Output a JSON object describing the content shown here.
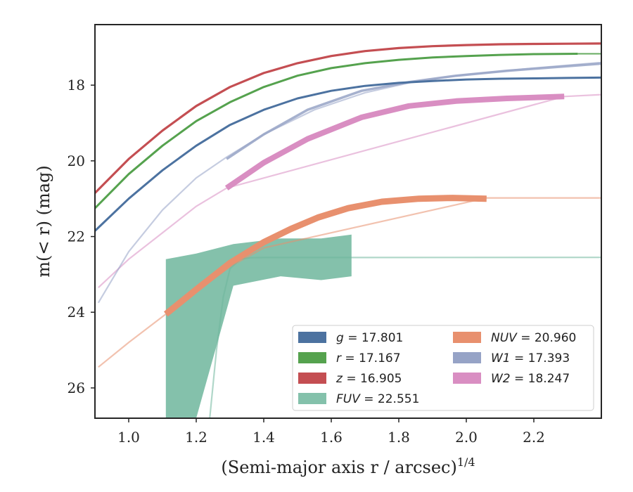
{
  "chart_data": {
    "type": "line",
    "xlabel": "(Semi-major axis r / arcsec)",
    "xlabel_sup": "1/4",
    "ylabel": "m(< r) (mag)",
    "xlim": [
      0.9,
      2.4
    ],
    "ylim": [
      26.8,
      16.4
    ],
    "y_inverted": true,
    "xticks": [
      1.0,
      1.2,
      1.4,
      1.6,
      1.8,
      2.0,
      2.2
    ],
    "xtick_labels": [
      "1.0",
      "1.2",
      "1.4",
      "1.6",
      "1.8",
      "2.0",
      "2.2"
    ],
    "yticks": [
      18,
      20,
      22,
      24,
      26
    ],
    "ytick_labels": [
      "18",
      "20",
      "22",
      "24",
      "26"
    ],
    "grid": false,
    "legend": {
      "placement": "lower-right",
      "columns": 2,
      "entries": [
        {
          "band": "g",
          "value": "17.801"
        },
        {
          "band": "r",
          "value": "17.167"
        },
        {
          "band": "z",
          "value": "16.905"
        },
        {
          "band": "FUV",
          "value": "22.551"
        },
        {
          "band": "NUV",
          "value": "20.960"
        },
        {
          "band": "W1",
          "value": "17.393"
        },
        {
          "band": "W2",
          "value": "18.247"
        }
      ]
    },
    "series": [
      {
        "band": "g",
        "color": "#4c72a0",
        "x": [
          0.9,
          1.0,
          1.1,
          1.2,
          1.3,
          1.4,
          1.5,
          1.6,
          1.7,
          1.8,
          1.9,
          2.0,
          2.1,
          2.2,
          2.3,
          2.4
        ],
        "y": [
          21.85,
          21.0,
          20.25,
          19.6,
          19.05,
          18.65,
          18.35,
          18.15,
          18.02,
          17.94,
          17.89,
          17.85,
          17.83,
          17.82,
          17.81,
          17.8
        ],
        "fit_x": [
          2.33,
          2.4
        ],
        "fit_y": [
          17.81,
          17.8
        ]
      },
      {
        "band": "r",
        "color": "#55a24e",
        "x": [
          0.9,
          1.0,
          1.1,
          1.2,
          1.3,
          1.4,
          1.5,
          1.6,
          1.7,
          1.8,
          1.9,
          2.0,
          2.1,
          2.2,
          2.33
        ],
        "y": [
          21.25,
          20.35,
          19.6,
          18.95,
          18.45,
          18.05,
          17.75,
          17.55,
          17.42,
          17.33,
          17.27,
          17.23,
          17.2,
          17.18,
          17.17
        ],
        "fit_x": [
          2.33,
          2.4
        ],
        "fit_y": [
          17.17,
          17.17
        ]
      },
      {
        "band": "z",
        "color": "#c44e52",
        "x": [
          0.9,
          1.0,
          1.1,
          1.2,
          1.3,
          1.4,
          1.5,
          1.6,
          1.7,
          1.8,
          1.9,
          2.0,
          2.1,
          2.2,
          2.3,
          2.4
        ],
        "y": [
          20.85,
          19.95,
          19.2,
          18.55,
          18.05,
          17.68,
          17.42,
          17.23,
          17.1,
          17.02,
          16.97,
          16.94,
          16.92,
          16.91,
          16.905,
          16.9
        ],
        "fit_x": [
          2.3,
          2.4
        ],
        "fit_y": [
          16.905,
          16.9
        ]
      },
      {
        "band": "W1",
        "color": "#96a3c6",
        "x": [
          1.29,
          1.4,
          1.53,
          1.69,
          1.83,
          1.97,
          2.12,
          2.27,
          2.4
        ],
        "y": [
          19.95,
          19.3,
          18.65,
          18.15,
          17.92,
          17.75,
          17.62,
          17.52,
          17.43
        ],
        "fit_x": [
          0.91,
          1.0,
          1.1,
          1.2,
          1.29,
          1.4,
          1.55,
          1.7,
          1.85,
          2.0,
          2.2,
          2.4
        ],
        "fit_y": [
          23.75,
          22.4,
          21.3,
          20.45,
          19.9,
          19.3,
          18.65,
          18.2,
          17.9,
          17.72,
          17.55,
          17.4
        ]
      },
      {
        "band": "W2",
        "color": "#d98ec2",
        "x": [
          1.29,
          1.4,
          1.53,
          1.69,
          1.83,
          1.97,
          2.12,
          2.29
        ],
        "y": [
          20.72,
          20.05,
          19.42,
          18.85,
          18.55,
          18.42,
          18.35,
          18.3
        ],
        "fit_x": [
          0.91,
          1.0,
          1.1,
          1.2,
          1.29,
          2.29,
          2.4
        ],
        "fit_y": [
          23.35,
          22.6,
          21.9,
          21.2,
          20.72,
          18.3,
          18.25
        ]
      },
      {
        "band": "NUV",
        "color": "#e8906e",
        "x": [
          1.11,
          1.2,
          1.3,
          1.4,
          1.48,
          1.56,
          1.65,
          1.75,
          1.86,
          1.96,
          2.06
        ],
        "y": [
          24.05,
          23.4,
          22.7,
          22.15,
          21.8,
          21.5,
          21.25,
          21.08,
          21.0,
          20.98,
          21.0
        ],
        "fit_x": [
          0.91,
          1.0,
          1.11,
          1.2,
          1.3,
          1.4,
          2.06,
          2.4
        ],
        "fit_y": [
          25.45,
          24.8,
          24.05,
          23.45,
          22.8,
          22.3,
          20.98,
          20.98
        ]
      },
      {
        "band": "FUV",
        "color": "#6fb69c",
        "x": [
          1.11,
          1.2,
          1.31,
          1.45,
          1.57,
          1.66
        ],
        "y_upper": [
          22.6,
          22.45,
          22.2,
          22.05,
          22.05,
          21.95
        ],
        "y_lower": [
          26.8,
          26.8,
          23.3,
          23.05,
          23.15,
          23.05
        ],
        "fit_x": [
          1.24,
          1.26,
          1.28,
          1.3,
          1.33,
          1.36,
          1.4,
          2.4
        ],
        "fit_y": [
          26.8,
          25.0,
          23.6,
          22.85,
          22.6,
          22.56,
          22.555,
          22.551
        ]
      }
    ]
  }
}
